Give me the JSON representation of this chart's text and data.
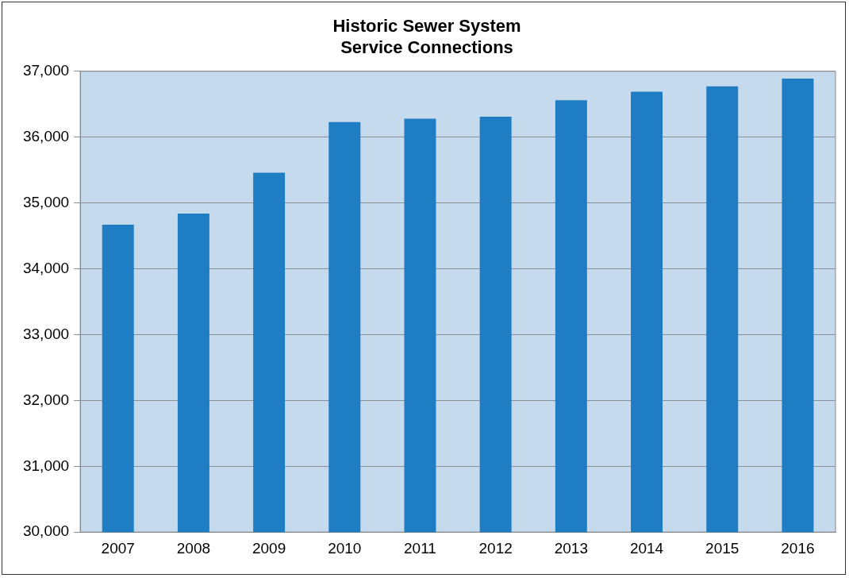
{
  "chart_data": {
    "type": "bar",
    "title": [
      "Historic Sewer System",
      "Service Connections"
    ],
    "categories": [
      "2007",
      "2008",
      "2009",
      "2010",
      "2011",
      "2012",
      "2013",
      "2014",
      "2015",
      "2016"
    ],
    "values": [
      34670,
      34840,
      35460,
      36230,
      36280,
      36310,
      36560,
      36690,
      36770,
      36890
    ],
    "color": "#1f7dc4",
    "ylim": [
      30000,
      37000
    ],
    "yticks": [
      {
        "value": 30000,
        "label": "30,000"
      },
      {
        "value": 31000,
        "label": "31,000"
      },
      {
        "value": 32000,
        "label": "32,000"
      },
      {
        "value": 33000,
        "label": "33,000"
      },
      {
        "value": 34000,
        "label": "34,000"
      },
      {
        "value": 35000,
        "label": "35,000"
      },
      {
        "value": 36000,
        "label": "36,000"
      },
      {
        "value": 37000,
        "label": "37,000"
      }
    ],
    "grid": "y",
    "legend": false
  }
}
